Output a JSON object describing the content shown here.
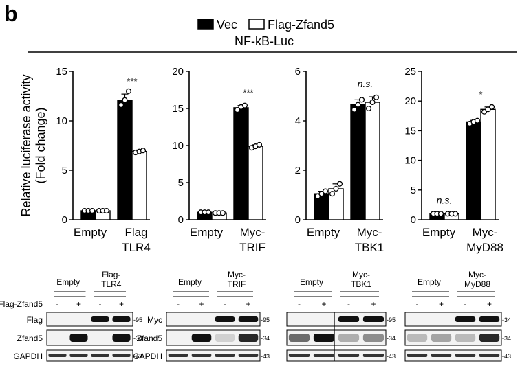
{
  "panel_label": "b",
  "legend": {
    "vec": "Vec",
    "flag": "Flag-Zfand5",
    "vec_color": "#000000",
    "flag_color": "#ffffff"
  },
  "reporter": "NF-kB-Luc",
  "y_axis_label_line1": "Relative luciferase activity",
  "y_axis_label_line2": "(Fold change)",
  "chart_data": [
    {
      "type": "bar",
      "categories": [
        "Empty",
        "Flag-TLR4"
      ],
      "category_lines": [
        [
          "Empty"
        ],
        [
          "Flag",
          "TLR4"
        ]
      ],
      "series": [
        {
          "name": "Vec",
          "values": [
            0.9,
            12.1
          ],
          "points": [
            [
              0.9,
              0.9,
              0.9
            ],
            [
              11.6,
              12.1,
              13.0
            ]
          ],
          "errors": [
            0.1,
            0.6
          ]
        },
        {
          "name": "Flag-Zfand5",
          "values": [
            0.9,
            6.9
          ],
          "points": [
            [
              0.9,
              0.9,
              0.9
            ],
            [
              6.8,
              6.9,
              7.0
            ]
          ],
          "errors": [
            0.05,
            0.15
          ]
        }
      ],
      "ylim": [
        0,
        15
      ],
      "yticks": [
        "0",
        "5",
        "10",
        "15"
      ],
      "significance": [
        "",
        "***"
      ],
      "significance_italic": [
        false,
        false
      ]
    },
    {
      "type": "bar",
      "categories": [
        "Empty",
        "Myc-TRIF"
      ],
      "category_lines": [
        [
          "Empty"
        ],
        [
          "Myc-",
          "TRIF"
        ]
      ],
      "series": [
        {
          "name": "Vec",
          "values": [
            1.0,
            15.1
          ],
          "points": [
            [
              1.0,
              1.0,
              1.0
            ],
            [
              14.8,
              15.2,
              15.4
            ]
          ],
          "errors": [
            0.1,
            0.3
          ]
        },
        {
          "name": "Flag-Zfand5",
          "values": [
            0.9,
            9.9
          ],
          "points": [
            [
              0.9,
              0.9,
              0.9
            ],
            [
              9.7,
              9.9,
              10.1
            ]
          ],
          "errors": [
            0.05,
            0.2
          ]
        }
      ],
      "ylim": [
        0,
        20
      ],
      "yticks": [
        "0",
        "5",
        "10",
        "15",
        "20"
      ],
      "significance": [
        "",
        "***"
      ],
      "significance_italic": [
        false,
        false
      ]
    },
    {
      "type": "bar",
      "categories": [
        "Empty",
        "Myc-TBK1"
      ],
      "category_lines": [
        [
          "Empty"
        ],
        [
          "Myc-",
          "TBK1"
        ]
      ],
      "series": [
        {
          "name": "Vec",
          "values": [
            1.05,
            4.65
          ],
          "points": [
            [
              0.95,
              1.05,
              1.15
            ],
            [
              4.45,
              4.65,
              4.85
            ]
          ],
          "errors": [
            0.1,
            0.2
          ]
        },
        {
          "name": "Flag-Zfand5",
          "values": [
            1.25,
            4.75
          ],
          "points": [
            [
              1.05,
              1.25,
              1.45
            ],
            [
              4.5,
              4.75,
              4.95
            ]
          ],
          "errors": [
            0.2,
            0.22
          ]
        }
      ],
      "ylim": [
        0,
        6
      ],
      "yticks": [
        "0",
        "2",
        "4",
        "6"
      ],
      "significance": [
        "",
        "n.s."
      ],
      "significance_italic": [
        false,
        true
      ]
    },
    {
      "type": "bar",
      "categories": [
        "Empty",
        "Myc-MyD88"
      ],
      "category_lines": [
        [
          "Empty"
        ],
        [
          "Myc-",
          "MyD88"
        ]
      ],
      "series": [
        {
          "name": "Vec",
          "values": [
            1.0,
            16.5
          ],
          "points": [
            [
              1.0,
              1.0,
              1.0
            ],
            [
              16.2,
              16.5,
              16.7
            ]
          ],
          "errors": [
            0.1,
            0.25
          ]
        },
        {
          "name": "Flag-Zfand5",
          "values": [
            1.0,
            18.6
          ],
          "points": [
            [
              1.0,
              1.0,
              1.0
            ],
            [
              18.2,
              18.6,
              19.0
            ]
          ],
          "errors": [
            0.1,
            0.4
          ]
        }
      ],
      "ylim": [
        0,
        25
      ],
      "yticks": [
        "0",
        "5",
        "10",
        "15",
        "20",
        "25"
      ],
      "significance": [
        "n.s.",
        "*"
      ],
      "significance_italic": [
        true,
        false
      ]
    }
  ],
  "blots": {
    "zfand5_row_label": "Flag-Zfand5",
    "lane_signs": [
      "-",
      "+",
      "-",
      "+"
    ],
    "panels": [
      {
        "groups": [
          [
            "Empty"
          ],
          [
            "Flag-",
            "TLR4"
          ]
        ],
        "rows": [
          "Flag",
          "Zfand5",
          "GAPDH"
        ],
        "mw": [
          "-95",
          "-34",
          "-43"
        ]
      },
      {
        "groups": [
          [
            "Empty"
          ],
          [
            "Myc-",
            "TRIF"
          ]
        ],
        "rows": [
          "Myc",
          "Zfand5",
          "GAPDH"
        ],
        "mw": [
          "-95",
          "-34",
          "-43"
        ]
      },
      {
        "groups": [
          [
            "Empty"
          ],
          [
            "Myc-",
            "TBK1"
          ]
        ],
        "rows": [],
        "mw": [
          "-95",
          "-34",
          "-43"
        ]
      },
      {
        "groups": [
          [
            "Empty"
          ],
          [
            "Myc-",
            "MyD88"
          ]
        ],
        "rows": [],
        "mw": [
          "-34",
          "-34",
          "-43"
        ]
      }
    ]
  }
}
